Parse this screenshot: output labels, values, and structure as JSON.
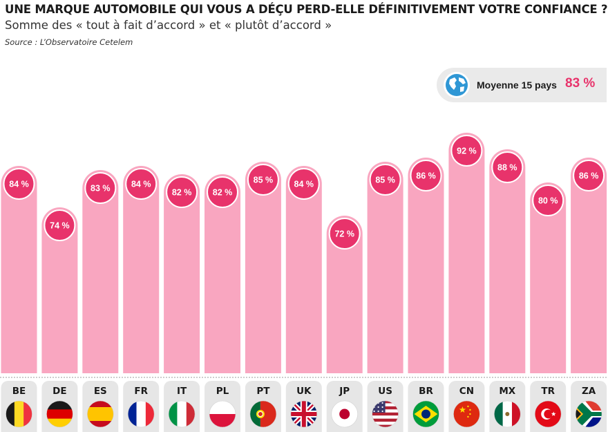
{
  "title": "UNE MARQUE AUTOMOBILE QUI VOUS A DÉÇU PERD-ELLE DÉFINITIVEMENT VOTRE CONFIANCE ?",
  "subtitle": "Somme des « tout à fait d’accord » et « plutôt d’accord »",
  "source": "Source : L’Observatoire Cetelem",
  "average": {
    "label": "Moyenne 15 pays",
    "value": "83 %",
    "icon": "globe-icon"
  },
  "colors": {
    "bar": "#f9a6c0",
    "bubble": "#e8336b",
    "accent": "#e8336b",
    "card": "#e6e6e6"
  },
  "chart_data": {
    "type": "bar",
    "title": "UNE MARQUE AUTOMOBILE QUI VOUS A DÉÇU PERD-ELLE DÉFINITIVEMENT VOTRE CONFIANCE ?",
    "subtitle": "Somme des « tout à fait d’accord » et « plutôt d’accord »",
    "unit": "%",
    "categories": [
      "BE",
      "DE",
      "ES",
      "FR",
      "IT",
      "PL",
      "PT",
      "UK",
      "JP",
      "US",
      "BR",
      "CN",
      "MX",
      "TR",
      "ZA"
    ],
    "values": [
      84,
      74,
      83,
      84,
      82,
      82,
      85,
      84,
      72,
      85,
      86,
      92,
      88,
      80,
      86
    ],
    "labels": [
      "84 %",
      "74 %",
      "83 %",
      "84 %",
      "82 %",
      "82 %",
      "85 %",
      "84 %",
      "72 %",
      "85 %",
      "86 %",
      "92 %",
      "88 %",
      "80 %",
      "86 %"
    ],
    "flags": [
      "flag-be-icon",
      "flag-de-icon",
      "flag-es-icon",
      "flag-fr-icon",
      "flag-it-icon",
      "flag-pl-icon",
      "flag-pt-icon",
      "flag-uk-icon",
      "flag-jp-icon",
      "flag-us-icon",
      "flag-br-icon",
      "flag-cn-icon",
      "flag-mx-icon",
      "flag-tr-icon",
      "flag-za-icon"
    ],
    "average": 83,
    "grid": false,
    "legend": "none"
  }
}
